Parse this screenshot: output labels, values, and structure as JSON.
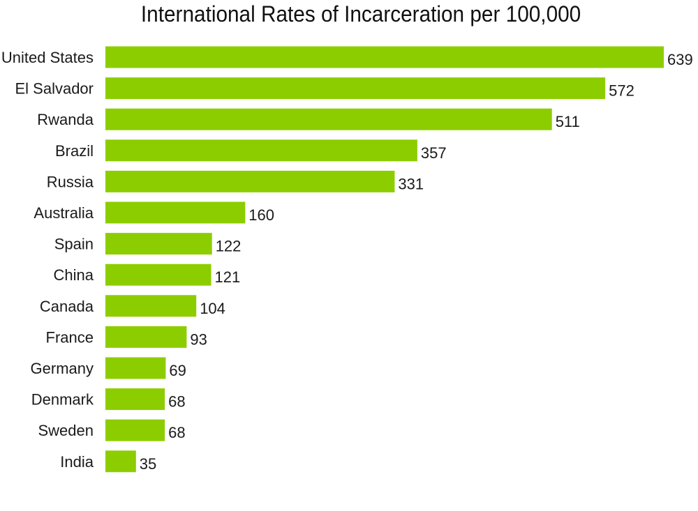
{
  "chart_data": {
    "type": "bar",
    "orientation": "horizontal",
    "title": "International Rates of Incarceration per 100,000",
    "xlabel": "",
    "ylabel": "",
    "grid": false,
    "legend": "none",
    "xlim": [
      0,
      639
    ],
    "bar_color": "#8ccd00",
    "categories": [
      "United States",
      "El Salvador",
      "Rwanda",
      "Brazil",
      "Russia",
      "Australia",
      "Spain",
      "China",
      "Canada",
      "France",
      "Germany",
      "Denmark",
      "Sweden",
      "India"
    ],
    "values": [
      639,
      572,
      511,
      357,
      331,
      160,
      122,
      121,
      104,
      93,
      69,
      68,
      68,
      35
    ]
  }
}
